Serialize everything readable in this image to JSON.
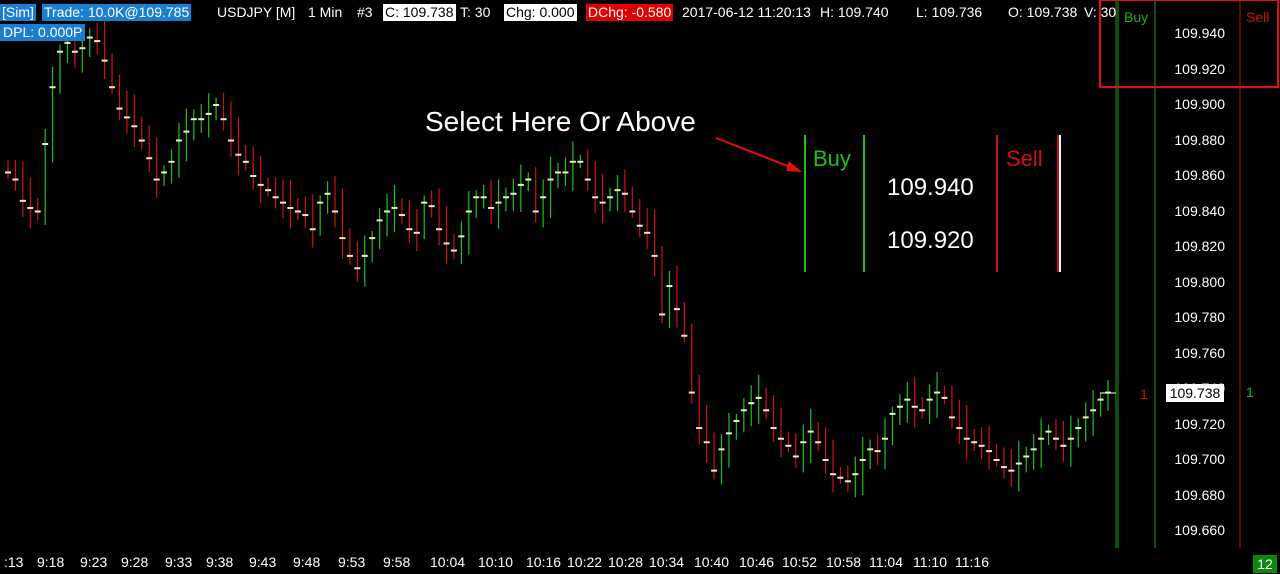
{
  "header": {
    "account": "[Sim]",
    "trade": "Trade: 10.0K@109.785",
    "instrument": "USDJPY [M]",
    "interval": "1 Min",
    "index": "#3",
    "close": "C: 109.738",
    "ticks": "T: 30",
    "change": "Chg: 0.000",
    "dchange": "DChg: -0.580",
    "datetime": "2017-06-12 11:20:13",
    "high": "H: 109.740",
    "low": "L: 109.736",
    "open": "O: 109.738",
    "volume": "V: 30",
    "dpl": "DPL: 0.000P"
  },
  "overlay": {
    "instruction": "Select Here Or Above",
    "buy_label": "Buy",
    "sell_label": "Sell",
    "price_top": "109.940",
    "price_bottom": "109.920"
  },
  "ladder": {
    "buy_header": "Buy",
    "sell_header": "Sell",
    "buy_count": "1",
    "sell_count": "1",
    "last_price": "109.738",
    "bottom_badge": "12"
  },
  "colors": {
    "up": "#1fbf1f",
    "down": "#d01010",
    "buy": "#1faa1f",
    "sell": "#d01010",
    "accent": "#1a7fd0"
  },
  "chart_data": {
    "type": "candlestick",
    "y_ticks": [
      "109.940",
      "109.920",
      "109.900",
      "109.880",
      "109.860",
      "109.840",
      "109.820",
      "109.800",
      "109.780",
      "109.760",
      "109.740",
      "109.720",
      "109.700",
      "109.680",
      "109.660"
    ],
    "ylim": [
      109.65,
      109.95
    ],
    "x_ticks": [
      ":13",
      "9:18",
      "9:23",
      "9:28",
      "9:33",
      "9:38",
      "9:43",
      "9:48",
      "9:53",
      "9:58",
      "10:04",
      "10:10",
      "10:16",
      "10:22",
      "10:28",
      "10:34",
      "10:40",
      "10:46",
      "10:52",
      "10:58",
      "11:04",
      "11:10",
      "11:16"
    ],
    "closes": [
      109.862,
      109.858,
      109.846,
      109.842,
      109.84,
      109.878,
      109.91,
      109.93,
      109.935,
      109.93,
      109.932,
      109.938,
      109.936,
      109.925,
      109.91,
      109.898,
      109.893,
      109.888,
      109.88,
      109.87,
      109.858,
      109.862,
      109.868,
      109.88,
      109.885,
      109.892,
      109.892,
      109.895,
      109.9,
      109.892,
      109.88,
      109.872,
      109.868,
      109.86,
      109.855,
      109.852,
      109.848,
      109.845,
      109.842,
      109.84,
      109.838,
      109.83,
      109.845,
      109.85,
      109.84,
      109.825,
      109.815,
      109.808,
      109.815,
      109.825,
      109.835,
      109.84,
      109.842,
      109.838,
      109.83,
      109.828,
      109.845,
      109.843,
      109.83,
      109.822,
      109.818,
      109.826,
      109.84,
      109.848,
      109.848,
      109.842,
      109.845,
      109.848,
      109.85,
      109.855,
      109.858,
      109.84,
      109.848,
      109.858,
      109.862,
      109.862,
      109.868,
      109.868,
      109.858,
      109.848,
      109.845,
      109.848,
      109.852,
      109.85,
      109.84,
      109.832,
      109.828,
      109.815,
      109.782,
      109.798,
      109.785,
      109.77,
      109.738,
      109.718,
      109.71,
      109.694,
      109.706,
      109.715,
      109.722,
      109.728,
      109.732,
      109.735,
      109.728,
      109.718,
      109.712,
      109.708,
      109.702,
      109.71,
      109.716,
      109.71,
      109.7,
      109.692,
      109.69,
      109.688,
      109.692,
      109.7,
      109.706,
      109.705,
      109.712,
      109.726,
      109.73,
      109.734,
      109.73,
      109.728,
      109.734,
      109.738,
      109.735,
      109.724,
      109.718,
      109.712,
      109.71,
      109.708,
      109.705,
      109.7,
      109.696,
      109.694,
      109.698,
      109.702,
      109.706,
      109.712,
      109.716,
      109.712,
      109.708,
      109.712,
      109.718,
      109.724,
      109.728,
      109.734,
      109.738
    ],
    "title": "",
    "xlabel": "",
    "ylabel": ""
  }
}
